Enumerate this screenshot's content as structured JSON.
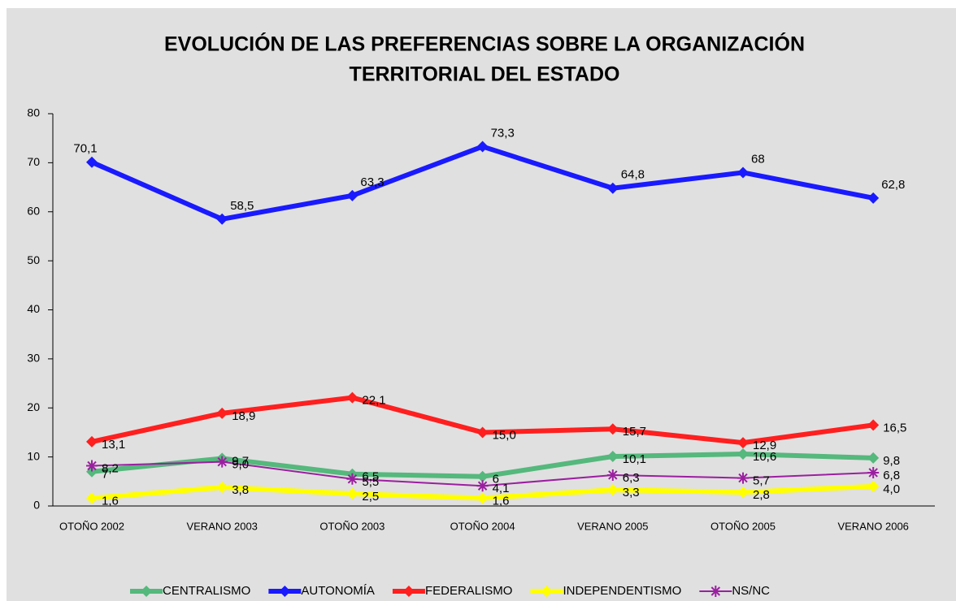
{
  "chart_data": {
    "type": "line",
    "title": [
      "EVOLUCIÓN DE LAS PREFERENCIAS SOBRE LA ORGANIZACIÓN",
      "TERRITORIAL DEL ESTADO"
    ],
    "categories": [
      "OTOÑO 2002",
      "VERANO 2003",
      "OTOÑO 2003",
      "OTOÑO 2004",
      "VERANO 2005",
      "OTOÑO 2005",
      "VERANO 2006"
    ],
    "ylim": [
      0,
      80
    ],
    "yticks": [
      0,
      10,
      20,
      30,
      40,
      50,
      60,
      70,
      80
    ],
    "legend": "bottom",
    "series": [
      {
        "name": "CENTRALISMO",
        "color": "#55b87c",
        "marker": "diamond",
        "values": [
          7,
          9.7,
          6.5,
          6,
          10.1,
          10.6,
          9.8
        ],
        "value_labels": [
          "7",
          "9,7",
          "6,5",
          "6",
          "10,1",
          "10,6",
          "9,8"
        ]
      },
      {
        "name": "AUTONOMÍA",
        "color": "#1a1aff",
        "marker": "diamond",
        "values": [
          70.1,
          58.5,
          63.3,
          73.3,
          64.8,
          68,
          62.8
        ],
        "value_labels": [
          "70,1",
          "58,5",
          "63,3",
          "73,3",
          "64,8",
          "68",
          "62,8"
        ]
      },
      {
        "name": "FEDERALISMO",
        "color": "#ff1f1f",
        "marker": "diamond",
        "values": [
          13.1,
          18.9,
          22.1,
          15.0,
          15.7,
          12.9,
          16.5
        ],
        "value_labels": [
          "13,1",
          "18,9",
          "22,1",
          "15,0",
          "15,7",
          "12,9",
          "16,5"
        ]
      },
      {
        "name": "INDEPENDENTISMO",
        "color": "#ffff00",
        "marker": "diamond",
        "values": [
          1.6,
          3.8,
          2.5,
          1.6,
          3.3,
          2.8,
          4.0
        ],
        "value_labels": [
          "1,6",
          "3,8",
          "2,5",
          "1,6",
          "3,3",
          "2,8",
          "4,0"
        ]
      },
      {
        "name": "NS/NC",
        "color": "#9b1fa0",
        "marker": "star",
        "values": [
          8.2,
          9.0,
          5.5,
          4.1,
          6.3,
          5.7,
          6.8
        ],
        "value_labels": [
          "8,2",
          "9,0",
          "5,5",
          "4,1",
          "6,3",
          "5,7",
          "6,8"
        ]
      }
    ]
  }
}
